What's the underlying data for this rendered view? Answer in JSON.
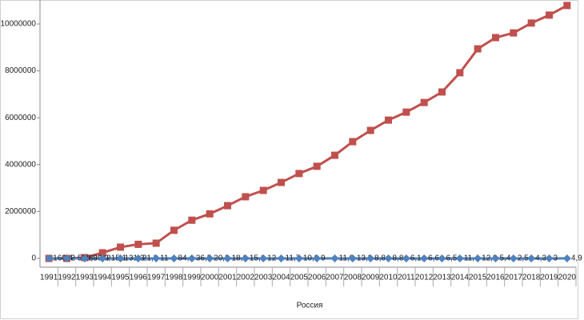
{
  "chart_data": {
    "type": "line",
    "x_label": "Россия",
    "categories": [
      "1991",
      "1992",
      "1993",
      "1994",
      "1995",
      "1996",
      "1997",
      "1998",
      "1999",
      "2000",
      "2001",
      "2002",
      "2003",
      "2004",
      "2005",
      "2006",
      "2007",
      "2008",
      "2009",
      "2010",
      "2011",
      "2012",
      "2013",
      "2014",
      "2015",
      "2016",
      "2017",
      "2018",
      "2019",
      "2020"
    ],
    "series": [
      {
        "color": "#c0504d",
        "marker": "square",
        "values": [
          0,
          0,
          33000,
          240000,
          480000,
          600000,
          650000,
          1200000,
          1630000,
          1900000,
          2250000,
          2630000,
          2900000,
          3240000,
          3620000,
          3930000,
          4400000,
          4980000,
          5460000,
          5900000,
          6240000,
          6650000,
          7100000,
          7920000,
          8940000,
          9420000,
          9620000,
          10040000,
          10380000,
          10790000
        ]
      },
      {
        "color": "#4f81bd",
        "marker": "diamond",
        "values": [
          160.4,
          2508.8,
          839.9,
          215.1,
          131.3,
          21.8,
          11,
          84.4,
          36.5,
          20.2,
          18.6,
          15.1,
          12,
          11.7,
          10.9,
          9,
          11.9,
          13.3,
          8.8,
          8.8,
          6.1,
          6.6,
          6.5,
          11.4,
          12.9,
          5.4,
          2.5,
          4.3,
          3,
          4.9
        ],
        "value_labels": [
          "160,4",
          "2 508,8",
          "839,9",
          "215,1",
          "131,3",
          "21,8",
          "11",
          "84,4",
          "36,5",
          "20,2",
          "18,6",
          "15,1",
          "12",
          "11,7",
          "10,9",
          "9",
          "11,9",
          "13,3",
          "8,8",
          "8,8",
          "6,1",
          "6,6",
          "6,5",
          "11,4",
          "12,9",
          "5,4",
          "2,5",
          "4,3",
          "3",
          "4,9"
        ]
      }
    ],
    "ylim": [
      0,
      11000000
    ],
    "yticks": [
      0,
      2000000,
      4000000,
      6000000,
      8000000,
      10000000
    ]
  }
}
